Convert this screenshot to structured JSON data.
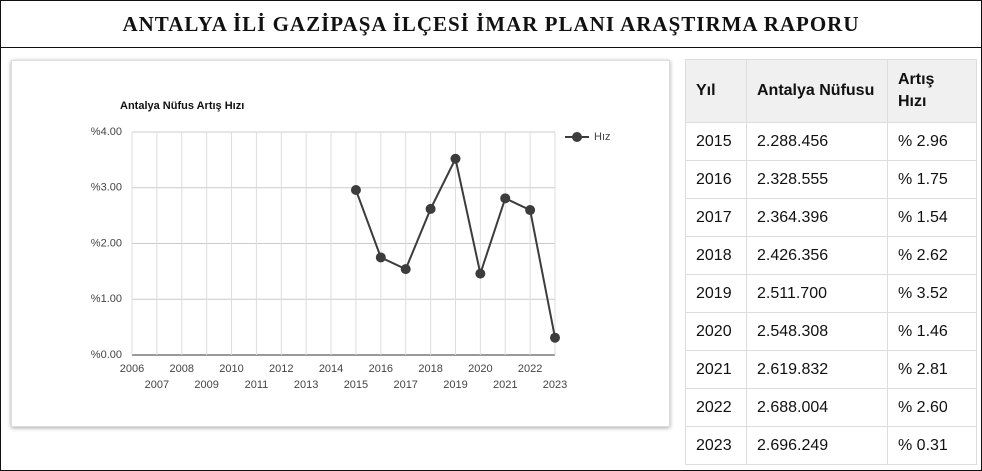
{
  "header": {
    "title": "ANTALYA İLİ GAZİPAŞA İLÇESİ İMAR PLANI ARAŞTIRMA RAPORU"
  },
  "chart_data": {
    "type": "line",
    "title": "Antalya Nüfus Artış Hızı",
    "x": [
      2015,
      2016,
      2017,
      2018,
      2019,
      2020,
      2021,
      2022,
      2023
    ],
    "series": [
      {
        "name": "Hız",
        "color": "#3c3c3c",
        "values": [
          2.96,
          1.75,
          1.54,
          2.62,
          3.52,
          1.46,
          2.81,
          2.6,
          0.31
        ]
      }
    ],
    "xlim": [
      2006,
      2023
    ],
    "xticks": [
      2006,
      2007,
      2008,
      2009,
      2010,
      2011,
      2012,
      2013,
      2014,
      2015,
      2016,
      2017,
      2018,
      2019,
      2020,
      2021,
      2022,
      2023
    ],
    "ylim": [
      0,
      4
    ],
    "yticks": [
      {
        "value": 0,
        "label": "%0.00"
      },
      {
        "value": 1,
        "label": "%1.00"
      },
      {
        "value": 2,
        "label": "%2.00"
      },
      {
        "value": 3,
        "label": "%3.00"
      },
      {
        "value": 4,
        "label": "%4.00"
      }
    ],
    "grid": true,
    "legend": "top-right"
  },
  "table": {
    "headers": [
      "Yıl",
      "Antalya Nüfusu",
      "Artış Hızı"
    ],
    "rows": [
      [
        "2015",
        "2.288.456",
        "% 2.96"
      ],
      [
        "2016",
        "2.328.555",
        "% 1.75"
      ],
      [
        "2017",
        "2.364.396",
        "% 1.54"
      ],
      [
        "2018",
        "2.426.356",
        "% 2.62"
      ],
      [
        "2019",
        "2.511.700",
        "% 3.52"
      ],
      [
        "2020",
        "2.548.308",
        "% 1.46"
      ],
      [
        "2021",
        "2.619.832",
        "% 2.81"
      ],
      [
        "2022",
        "2.688.004",
        "% 2.60"
      ],
      [
        "2023",
        "2.696.249",
        "% 0.31"
      ]
    ]
  }
}
